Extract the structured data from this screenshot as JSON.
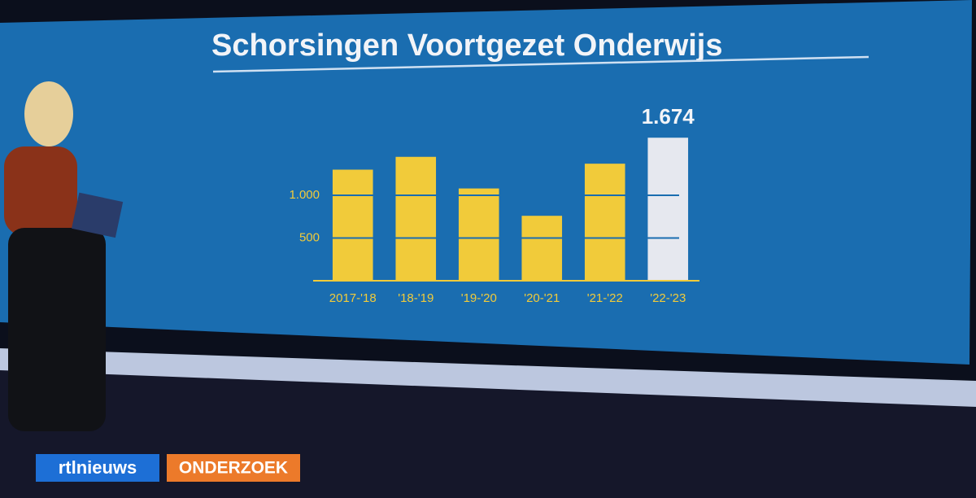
{
  "chart_data": {
    "type": "bar",
    "title": "Schorsingen Voortgezet Onderwijs",
    "categories": [
      "2017-'18",
      "'18-'19",
      "'19-'20",
      "'20-'21",
      "'21-'22",
      "'22-'23"
    ],
    "values": [
      1300,
      1450,
      1080,
      760,
      1370,
      1674
    ],
    "value_labels": [
      null,
      null,
      null,
      null,
      null,
      "1.674"
    ],
    "colors": [
      "#f1cb3a",
      "#f1cb3a",
      "#f1cb3a",
      "#f1cb3a",
      "#f1cb3a",
      "#e6e8ef"
    ],
    "ylim": [
      0,
      1800
    ],
    "yticks": [
      500,
      {
        "value": 1000,
        "label": "1.000"
      }
    ],
    "grid": true
  },
  "branding": {
    "logo": "rtlnieuws",
    "tag": "ONDERZOEK"
  }
}
